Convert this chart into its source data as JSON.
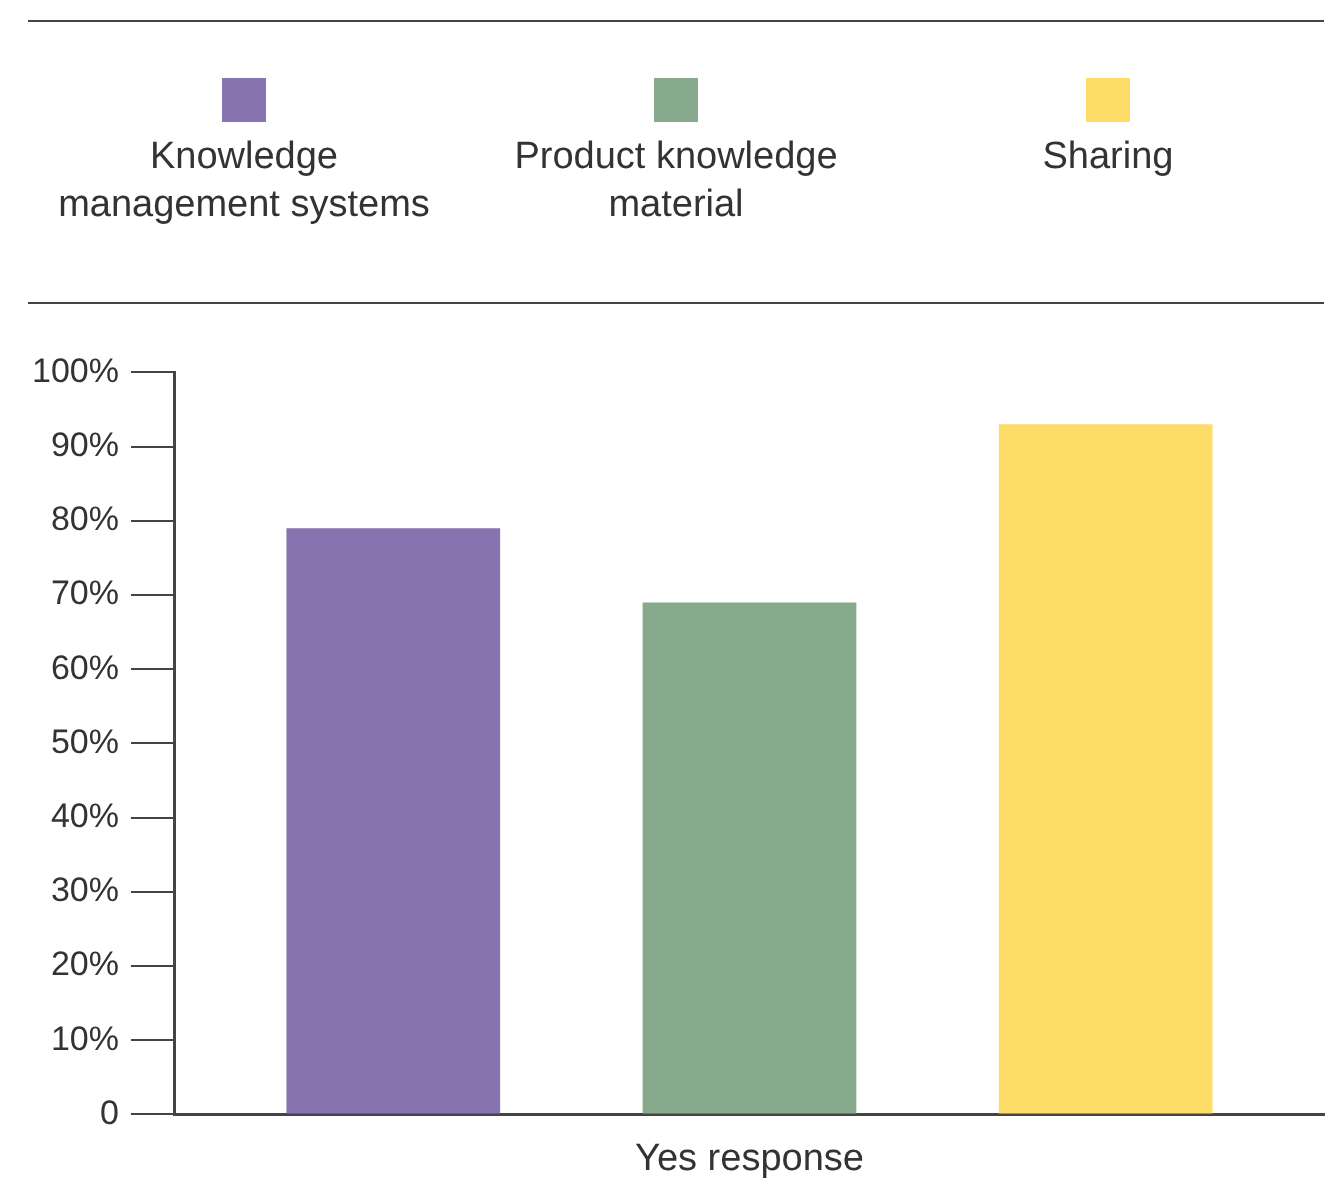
{
  "chart_data": {
    "type": "bar",
    "categories": [
      "Yes response"
    ],
    "series": [
      {
        "name": "Knowledge management systems",
        "color": "#8873b1",
        "values": [
          79
        ]
      },
      {
        "name": "Product knowledge material",
        "color": "#87a98c",
        "values": [
          69
        ]
      },
      {
        "name": "Sharing",
        "color": "#fddc67",
        "values": [
          93
        ]
      }
    ],
    "ylim": [
      0,
      100
    ],
    "yticks": [
      {
        "value": 0,
        "label": "0"
      },
      {
        "value": 10,
        "label": "10%"
      },
      {
        "value": 20,
        "label": "20%"
      },
      {
        "value": 30,
        "label": "30%"
      },
      {
        "value": 40,
        "label": "40%"
      },
      {
        "value": 50,
        "label": "50%"
      },
      {
        "value": 60,
        "label": "60%"
      },
      {
        "value": 70,
        "label": "70%"
      },
      {
        "value": 80,
        "label": "80%"
      },
      {
        "value": 90,
        "label": "90%"
      },
      {
        "value": 100,
        "label": "100%"
      }
    ],
    "legend": "top",
    "grid": false
  }
}
